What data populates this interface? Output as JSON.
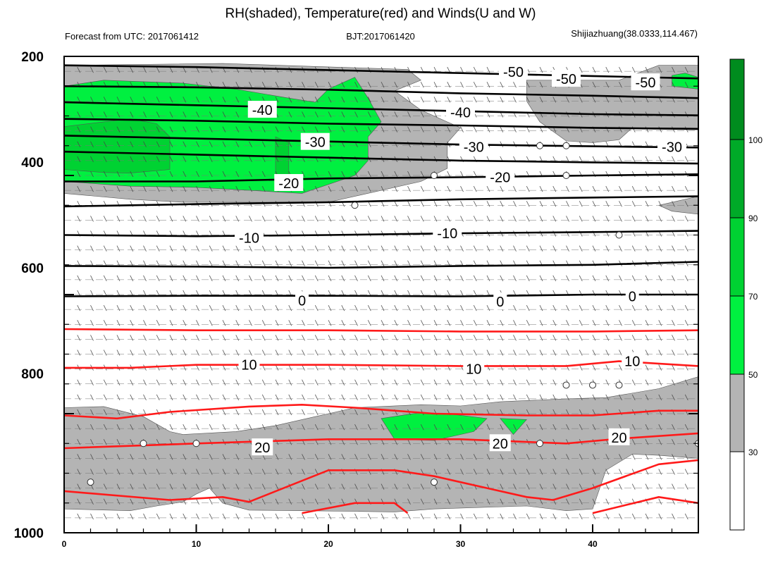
{
  "chart_data": {
    "type": "contour",
    "title": "RH(shaded), Temperature(red) and Winds(U and W)",
    "subtitle_left": "Forecast from UTC: 2017061412",
    "subtitle_center": "BJT:2017061420",
    "subtitle_right": "Shijiazhuang(38.0333,114.467)",
    "x_ticks": [
      "0",
      "10",
      "20",
      "30",
      "40"
    ],
    "y_ticks": [
      "200",
      "400",
      "600",
      "800",
      "1000"
    ],
    "xlim": [
      0,
      48
    ],
    "ylim": [
      200,
      1000
    ],
    "colorbar": {
      "ticks": [
        "30",
        "50",
        "70",
        "90",
        "100"
      ],
      "levels": [
        {
          "range": "0-30",
          "color": "#ffffff"
        },
        {
          "range": "30-50",
          "color": "#b4b4b4"
        },
        {
          "range": "50-70",
          "color": "#00f040"
        },
        {
          "range": "70-90",
          "color": "#00d232"
        },
        {
          "range": "90-100",
          "color": "#00aa28"
        },
        {
          "range": ">100",
          "color": "#008c1e"
        }
      ]
    },
    "rh_regions": [
      {
        "level": "30-50",
        "points": [
          [
            0,
            215
          ],
          [
            12,
            212
          ],
          [
            26,
            222
          ],
          [
            27,
            240
          ],
          [
            25,
            258
          ],
          [
            27,
            290
          ],
          [
            30,
            320
          ],
          [
            29,
            345
          ],
          [
            29,
            388
          ],
          [
            27,
            410
          ],
          [
            20,
            445
          ],
          [
            9,
            445
          ],
          [
            5,
            440
          ],
          [
            0,
            430
          ]
        ]
      },
      {
        "level": "30-50",
        "points": [
          [
            35,
            240
          ],
          [
            42,
            240
          ],
          [
            45,
            215
          ],
          [
            48,
            215
          ],
          [
            48,
            320
          ],
          [
            43,
            320
          ],
          [
            42,
            340
          ],
          [
            40,
            345
          ],
          [
            38,
            342
          ],
          [
            36,
            310
          ],
          [
            35,
            275
          ]
        ]
      },
      {
        "level": "30-50",
        "points": [
          [
            45,
            450
          ],
          [
            48,
            435
          ],
          [
            48,
            465
          ],
          [
            46,
            460
          ]
        ]
      },
      {
        "level": "30-50",
        "points": [
          [
            0,
            790
          ],
          [
            3,
            788
          ],
          [
            6,
            805
          ],
          [
            8,
            830
          ],
          [
            9,
            835
          ],
          [
            13,
            830
          ],
          [
            16,
            820
          ],
          [
            19,
            805
          ],
          [
            20,
            800
          ],
          [
            22,
            790
          ],
          [
            27,
            785
          ],
          [
            30,
            787
          ],
          [
            33,
            780
          ],
          [
            38,
            775
          ],
          [
            41,
            773
          ],
          [
            45,
            758
          ],
          [
            48,
            738
          ],
          [
            48,
            875
          ],
          [
            45,
            870
          ],
          [
            43,
            868
          ],
          [
            41,
            895
          ],
          [
            40,
            960
          ],
          [
            38,
            963
          ],
          [
            35,
            955
          ],
          [
            28,
            960
          ],
          [
            25,
            965
          ],
          [
            18,
            963
          ],
          [
            14,
            962
          ],
          [
            12,
            950
          ],
          [
            11,
            925
          ],
          [
            10,
            935
          ],
          [
            9,
            948
          ],
          [
            7,
            955
          ],
          [
            5,
            963
          ],
          [
            0,
            960
          ]
        ]
      },
      {
        "level": "50-70",
        "points": [
          [
            0,
            250
          ],
          [
            3,
            240
          ],
          [
            9,
            245
          ],
          [
            13,
            255
          ],
          [
            17,
            270
          ],
          [
            19,
            277
          ],
          [
            20,
            255
          ],
          [
            22,
            235
          ],
          [
            23,
            270
          ],
          [
            24,
            310
          ],
          [
            23,
            335
          ],
          [
            23,
            375
          ],
          [
            22,
            400
          ],
          [
            18,
            430
          ],
          [
            14,
            425
          ],
          [
            10,
            420
          ],
          [
            5,
            418
          ],
          [
            0,
            410
          ]
        ]
      },
      {
        "level": "50-70",
        "points": [
          [
            48,
            235
          ],
          [
            47,
            228
          ],
          [
            46,
            232
          ],
          [
            46,
            250
          ],
          [
            48,
            255
          ]
        ]
      },
      {
        "level": "50-70",
        "points": [
          [
            24,
            808
          ],
          [
            27,
            798
          ],
          [
            29,
            800
          ],
          [
            32,
            808
          ],
          [
            31,
            830
          ],
          [
            28,
            845
          ],
          [
            25,
            843
          ]
        ]
      },
      {
        "level": "50-70",
        "points": [
          [
            33,
            808
          ],
          [
            35,
            810
          ],
          [
            34,
            835
          ]
        ]
      },
      {
        "level": "70-90",
        "points": [
          [
            0,
            318
          ],
          [
            3,
            310
          ],
          [
            5,
            305
          ],
          [
            7,
            313
          ],
          [
            8,
            335
          ],
          [
            8,
            390
          ],
          [
            5,
            396
          ],
          [
            3,
            395
          ],
          [
            0,
            390
          ]
        ]
      },
      {
        "level": "70-90",
        "points": [
          [
            16,
            335
          ],
          [
            17,
            345
          ],
          [
            17,
            400
          ],
          [
            16,
            410
          ],
          [
            16,
            380
          ]
        ]
      }
    ],
    "temperature_contours": {
      "black": [
        {
          "value": -50,
          "points": [
            [
              0,
              215
            ],
            [
              10,
              218
            ],
            [
              20,
              223
            ],
            [
              30,
              228
            ],
            [
              40,
              233
            ],
            [
              48,
              237
            ]
          ]
        },
        {
          "value": -45,
          "points": [
            [
              0,
              250
            ],
            [
              10,
              252
            ],
            [
              20,
              256
            ],
            [
              30,
              262
            ],
            [
              40,
              266
            ],
            [
              48,
              270
            ]
          ]
        },
        {
          "value": -40,
          "points": [
            [
              0,
              277
            ],
            [
              10,
              282
            ],
            [
              20,
              287
            ],
            [
              30,
              292
            ],
            [
              40,
              297
            ],
            [
              48,
              299
            ]
          ]
        },
        {
          "value": -35,
          "points": [
            [
              0,
              305
            ],
            [
              10,
              308
            ],
            [
              20,
              313
            ],
            [
              30,
              316
            ],
            [
              40,
              320
            ],
            [
              48,
              322
            ]
          ]
        },
        {
          "value": -30,
          "points": [
            [
              0,
              333
            ],
            [
              10,
              338
            ],
            [
              20,
              343
            ],
            [
              30,
              348
            ],
            [
              40,
              351
            ],
            [
              48,
              353
            ]
          ]
        },
        {
          "value": -25,
          "points": [
            [
              0,
              360
            ],
            [
              10,
              365
            ],
            [
              20,
              370
            ],
            [
              30,
              375
            ],
            [
              40,
              378
            ],
            [
              48,
              380
            ]
          ]
        },
        {
          "value": -20,
          "points": [
            [
              0,
              410
            ],
            [
              10,
              410
            ],
            [
              20,
              405
            ],
            [
              30,
              403
            ],
            [
              40,
              400
            ],
            [
              48,
              398
            ]
          ]
        },
        {
          "value": -15,
          "points": [
            [
              0,
              452
            ],
            [
              10,
              448
            ],
            [
              20,
              445
            ],
            [
              30,
              440
            ],
            [
              40,
              437
            ],
            [
              48,
              435
            ]
          ]
        },
        {
          "value": -10,
          "points": [
            [
              0,
              500
            ],
            [
              10,
              502
            ],
            [
              20,
              500
            ],
            [
              30,
              497
            ],
            [
              40,
              495
            ],
            [
              48,
              493
            ]
          ]
        },
        {
          "value": -5,
          "points": [
            [
              0,
              552
            ],
            [
              10,
              553
            ],
            [
              20,
              555
            ],
            [
              30,
              552
            ],
            [
              40,
              550
            ],
            [
              48,
              545
            ]
          ]
        },
        {
          "value": 0,
          "points": [
            [
              0,
              603
            ],
            [
              10,
              602
            ],
            [
              20,
              602
            ],
            [
              30,
              603
            ],
            [
              40,
              600
            ],
            [
              48,
              600
            ]
          ]
        }
      ],
      "red": [
        {
          "value": 5,
          "points": [
            [
              0,
              658
            ],
            [
              10,
              660
            ],
            [
              20,
              660
            ],
            [
              30,
              662
            ],
            [
              40,
              662
            ],
            [
              48,
              660
            ]
          ]
        },
        {
          "value": 10,
          "points": [
            [
              0,
              723
            ],
            [
              5,
              723
            ],
            [
              10,
              718
            ],
            [
              20,
              718
            ],
            [
              30,
              720
            ],
            [
              38,
              720
            ],
            [
              42,
              712
            ],
            [
              48,
              720
            ]
          ]
        },
        {
          "value": 15,
          "points": [
            [
              0,
              803
            ],
            [
              4,
              808
            ],
            [
              8,
              797
            ],
            [
              14,
              788
            ],
            [
              18,
              785
            ],
            [
              22,
              790
            ],
            [
              28,
              800
            ],
            [
              35,
              803
            ],
            [
              40,
              803
            ],
            [
              45,
              795
            ],
            [
              48,
              795
            ]
          ]
        },
        {
          "value": 20,
          "points": [
            [
              0,
              858
            ],
            [
              10,
              850
            ],
            [
              20,
              843
            ],
            [
              30,
              843
            ],
            [
              38,
              850
            ],
            [
              42,
              842
            ],
            [
              48,
              833
            ]
          ]
        },
        {
          "value": 25,
          "points": [
            [
              0,
              930
            ],
            [
              8,
              945
            ],
            [
              12,
              940
            ],
            [
              14,
              948
            ],
            [
              20,
              895
            ],
            [
              25,
              895
            ],
            [
              28,
              905
            ],
            [
              32,
              925
            ],
            [
              35,
              940
            ],
            [
              37,
              945
            ],
            [
              40,
              925
            ],
            [
              45,
              885
            ],
            [
              48,
              878
            ]
          ]
        },
        {
          "value": 30,
          "points": [
            [
              18,
              967
            ],
            [
              22,
              950
            ],
            [
              25,
              950
            ],
            [
              26,
              967
            ]
          ]
        },
        {
          "value": 30,
          "points": [
            [
              40,
              967
            ],
            [
              45,
              940
            ],
            [
              48,
              950
            ]
          ]
        }
      ]
    },
    "contour_labels": [
      {
        "text": "-50",
        "x": 34,
        "y": 226
      },
      {
        "text": "-50",
        "x": 38,
        "y": 238
      },
      {
        "text": "-50",
        "x": 44,
        "y": 244
      },
      {
        "text": "-40",
        "x": 15,
        "y": 290
      },
      {
        "text": "-40",
        "x": 30,
        "y": 294
      },
      {
        "text": "-30",
        "x": 19,
        "y": 344
      },
      {
        "text": "-30",
        "x": 31,
        "y": 352
      },
      {
        "text": "-30",
        "x": 46,
        "y": 352
      },
      {
        "text": "-20",
        "x": 17,
        "y": 413
      },
      {
        "text": "-20",
        "x": 33,
        "y": 403
      },
      {
        "text": "-10",
        "x": 14,
        "y": 505
      },
      {
        "text": "-10",
        "x": 29,
        "y": 497
      },
      {
        "text": "0",
        "x": 18,
        "y": 610
      },
      {
        "text": "0",
        "x": 33,
        "y": 612
      },
      {
        "text": "0",
        "x": 43,
        "y": 603
      },
      {
        "text": "10",
        "x": 14,
        "y": 718
      },
      {
        "text": "10",
        "x": 31,
        "y": 725
      },
      {
        "text": "10",
        "x": 43,
        "y": 712
      },
      {
        "text": "20",
        "x": 15,
        "y": 857
      },
      {
        "text": "20",
        "x": 33,
        "y": 850
      },
      {
        "text": "20",
        "x": 42,
        "y": 840
      }
    ],
    "calm_wind_circles": [
      {
        "x": 36,
        "y": 350
      },
      {
        "x": 38,
        "y": 350
      },
      {
        "x": 28,
        "y": 400
      },
      {
        "x": 38,
        "y": 400
      },
      {
        "x": 22,
        "y": 450
      },
      {
        "x": 42,
        "y": 500
      },
      {
        "x": 38,
        "y": 752
      },
      {
        "x": 40,
        "y": 752
      },
      {
        "x": 42,
        "y": 752
      },
      {
        "x": 6,
        "y": 850
      },
      {
        "x": 10,
        "y": 850
      },
      {
        "x": 36,
        "y": 850
      },
      {
        "x": 48,
        "y": 850
      },
      {
        "x": 2,
        "y": 915
      },
      {
        "x": 28,
        "y": 915
      }
    ]
  }
}
